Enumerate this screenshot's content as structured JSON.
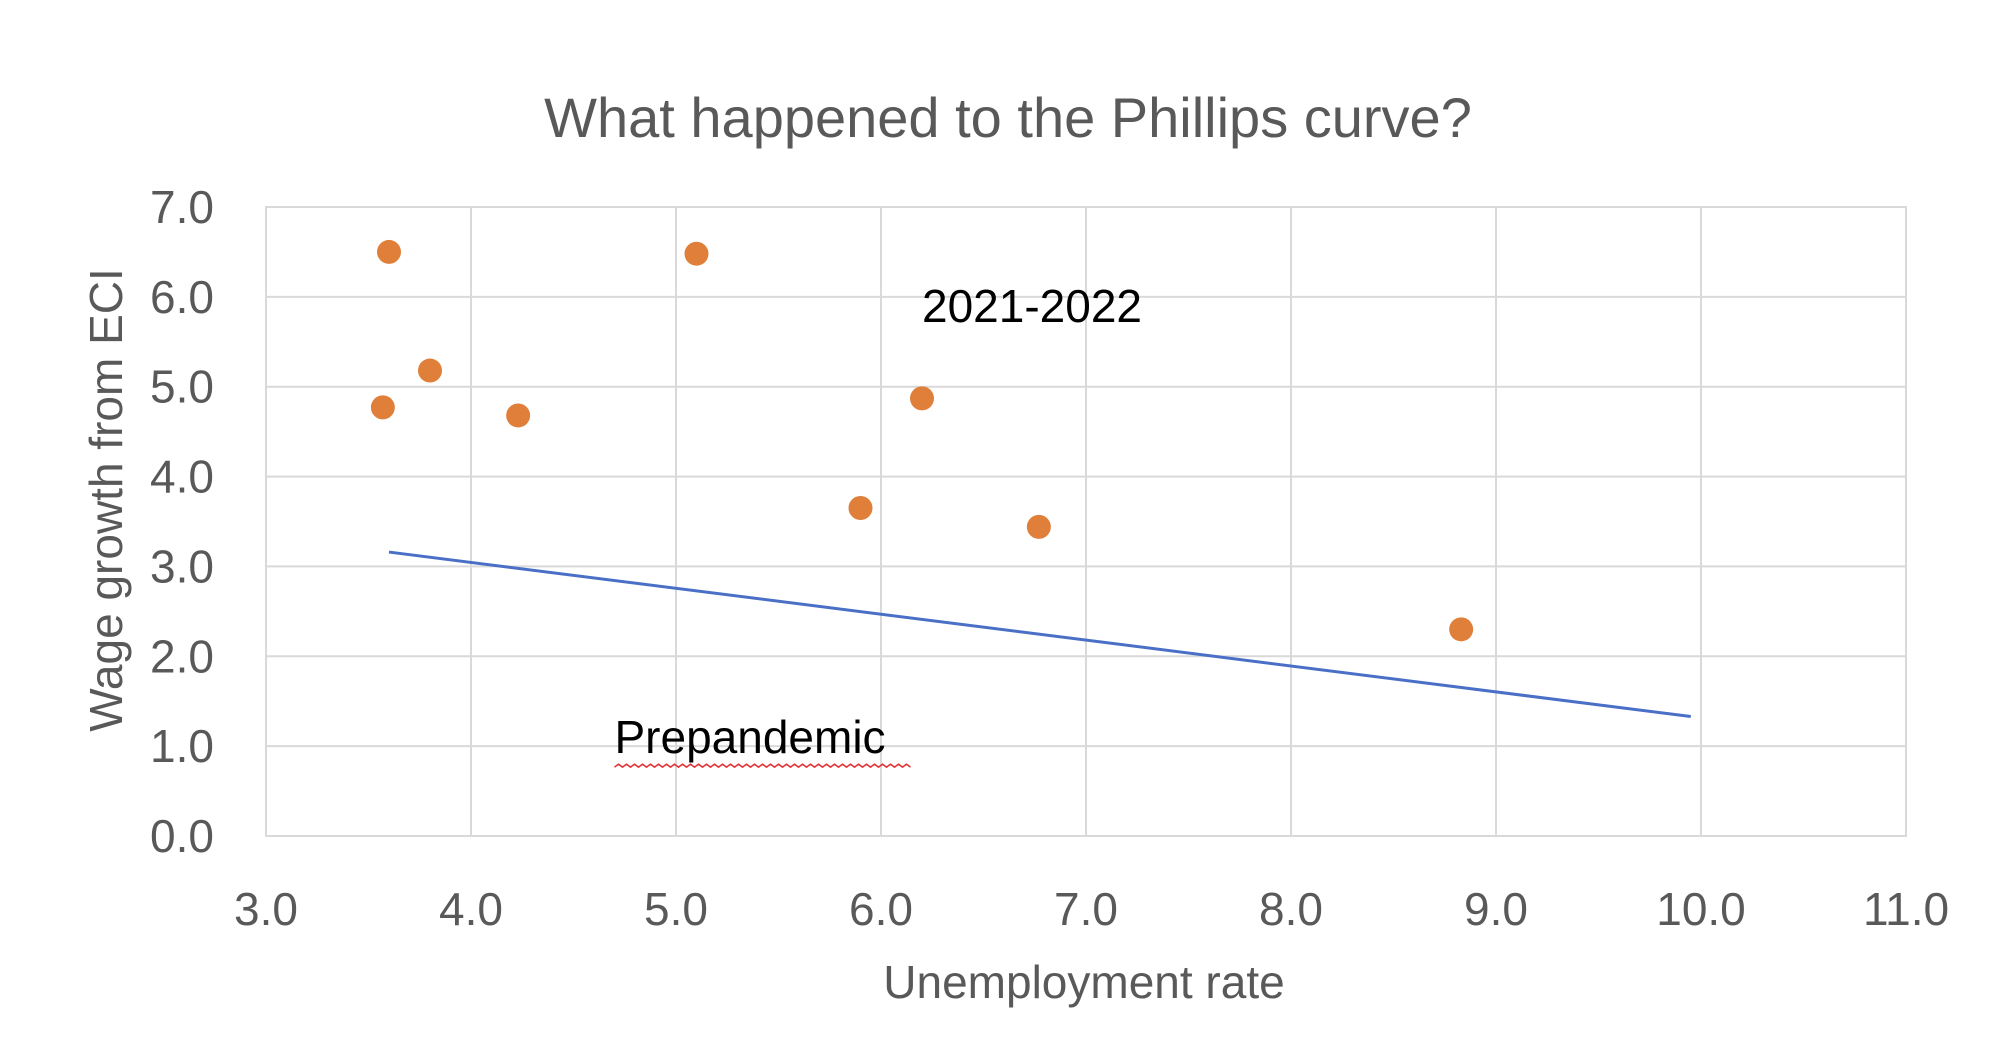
{
  "chart_data": {
    "type": "scatter",
    "title": "What happened to the Phillips curve?",
    "xlabel": "Unemployment rate",
    "ylabel": "Wage growth from ECI",
    "xlim": [
      3.0,
      11.0
    ],
    "ylim": [
      0.0,
      7.0
    ],
    "x_ticks": [
      "3.0",
      "4.0",
      "5.0",
      "6.0",
      "7.0",
      "8.0",
      "9.0",
      "10.0",
      "11.0"
    ],
    "y_ticks": [
      "0.0",
      "1.0",
      "2.0",
      "3.0",
      "4.0",
      "5.0",
      "6.0",
      "7.0"
    ],
    "grid": true,
    "legend": "none",
    "series": [
      {
        "type": "scatter",
        "color": "#e07f3a",
        "points": [
          {
            "x": 3.6,
            "y": 6.5
          },
          {
            "x": 5.1,
            "y": 6.48
          },
          {
            "x": 3.8,
            "y": 5.18
          },
          {
            "x": 3.57,
            "y": 4.77
          },
          {
            "x": 4.23,
            "y": 4.68
          },
          {
            "x": 6.2,
            "y": 4.87
          },
          {
            "x": 5.9,
            "y": 3.65
          },
          {
            "x": 6.77,
            "y": 3.44
          },
          {
            "x": 8.83,
            "y": 2.3
          }
        ]
      },
      {
        "type": "line",
        "color": "#4a6fc6",
        "points": [
          {
            "x": 3.6,
            "y": 3.16
          },
          {
            "x": 9.95,
            "y": 1.33
          }
        ]
      }
    ],
    "annotations": [
      {
        "text": "2021-2022",
        "x": 6.2,
        "y": 5.9
      },
      {
        "text": "Prepandemic",
        "x": 4.7,
        "y": 1.1
      }
    ]
  }
}
